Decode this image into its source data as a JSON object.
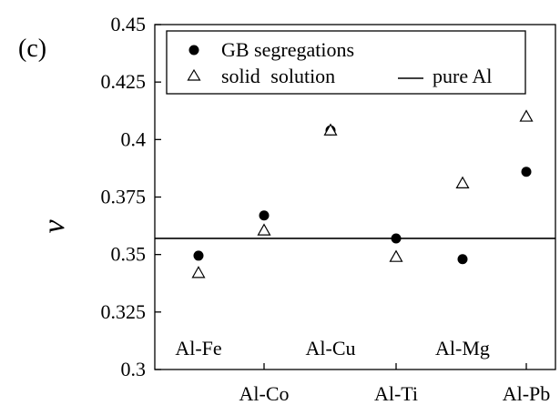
{
  "panel_label": "(c)",
  "chart_data": {
    "type": "scatter",
    "title": "",
    "xlabel": "",
    "ylabel": "ν",
    "ylim": [
      0.3,
      0.45
    ],
    "yticks": [
      "0.3",
      "0.325",
      "0.35",
      "0.375",
      "0.4",
      "0.425",
      "0.45"
    ],
    "categories": [
      "Al-Fe",
      "Al-Co",
      "Al-Cu",
      "Al-Ti",
      "Al-Mg",
      "Al-Pb"
    ],
    "category_label_row": [
      "upper",
      "lower",
      "upper",
      "lower",
      "upper",
      "lower"
    ],
    "series": [
      {
        "name": "GB segregations",
        "marker": "filled-circle",
        "color": "#000000",
        "values": [
          0.3495,
          0.367,
          0.404,
          0.357,
          0.348,
          0.386
        ]
      },
      {
        "name": "solid solution",
        "marker": "open-triangle",
        "color": "#000000",
        "values": [
          0.342,
          0.3605,
          0.404,
          0.349,
          0.381,
          0.41
        ]
      }
    ],
    "reference_line": {
      "name": "pure Al",
      "value": 0.357
    },
    "legend_position": "top"
  }
}
